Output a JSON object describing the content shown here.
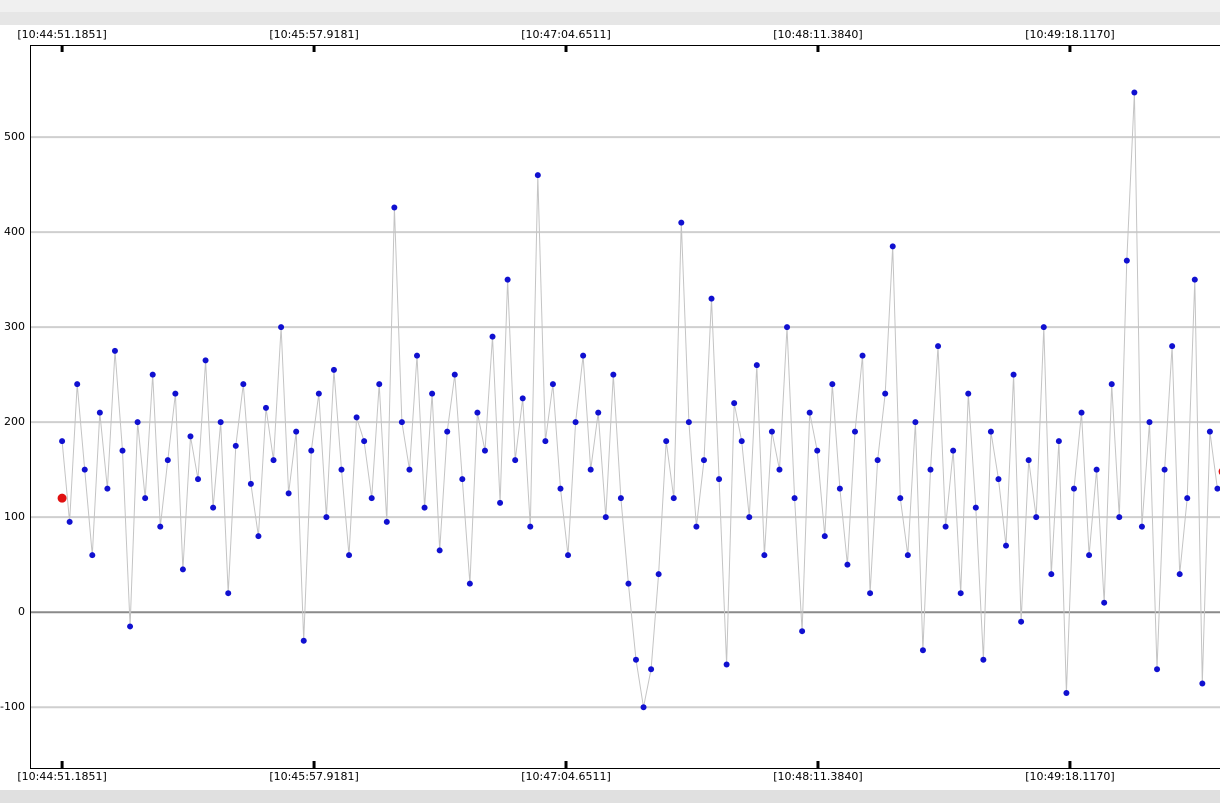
{
  "chart_data": {
    "type": "line",
    "xticks": [
      {
        "value": 0,
        "label": "[10:44:51.1851]"
      },
      {
        "value": 66.733,
        "label": "[10:45:57.9181]"
      },
      {
        "value": 133.466,
        "label": "[10:47:04.6511]"
      },
      {
        "value": 200.1989,
        "label": "[10:48:11.3840]"
      },
      {
        "value": 266.9319,
        "label": "[10:49:18.1170]"
      }
    ],
    "xlim": [
      -8.5,
      308
    ],
    "ylim": [
      -164,
      597
    ],
    "yticks": [
      -100,
      0,
      100,
      200,
      300,
      400,
      500
    ],
    "grid": true,
    "series": [
      {
        "color": "#1010d0",
        "line_color": "#c4c4c4",
        "x": [
          0,
          2,
          4,
          6,
          8,
          10,
          12,
          14,
          16,
          18,
          20,
          22,
          24,
          26,
          28,
          30,
          32,
          34,
          36,
          38,
          40,
          42,
          44,
          46,
          48,
          50,
          52,
          54,
          56,
          58,
          60,
          62,
          64,
          66,
          68,
          70,
          72,
          74,
          76,
          78,
          80,
          82,
          84,
          86,
          88,
          90,
          92,
          94,
          96,
          98,
          100,
          102,
          104,
          106,
          108,
          110,
          112,
          114,
          116,
          118,
          120,
          122,
          124,
          126,
          128,
          130,
          132,
          134,
          136,
          138,
          140,
          142,
          144,
          146,
          148,
          150,
          152,
          154,
          156,
          158,
          160,
          162,
          164,
          166,
          168,
          170,
          172,
          174,
          176,
          178,
          180,
          182,
          184,
          186,
          188,
          190,
          192,
          194,
          196,
          198,
          200,
          202,
          204,
          206,
          208,
          210,
          212,
          214,
          216,
          218,
          220,
          222,
          224,
          226,
          228,
          230,
          232,
          234,
          236,
          238,
          240,
          242,
          244,
          246,
          248,
          250,
          252,
          254,
          256,
          258,
          260,
          262,
          264,
          266,
          268,
          270,
          272,
          274,
          276,
          278,
          280,
          282,
          284,
          286,
          288,
          290,
          292,
          294,
          296,
          298,
          300,
          302,
          304,
          306
        ],
        "values": [
          180,
          95,
          240,
          150,
          60,
          210,
          130,
          275,
          170,
          -15,
          200,
          120,
          250,
          90,
          160,
          230,
          45,
          185,
          140,
          265,
          110,
          200,
          20,
          175,
          240,
          135,
          80,
          215,
          160,
          300,
          125,
          190,
          -30,
          170,
          230,
          100,
          255,
          150,
          60,
          205,
          180,
          120,
          240,
          95,
          426,
          200,
          150,
          270,
          110,
          230,
          65,
          190,
          250,
          140,
          30,
          210,
          170,
          290,
          115,
          350,
          160,
          225,
          90,
          460,
          180,
          240,
          130,
          60,
          200,
          270,
          150,
          210,
          100,
          250,
          120,
          30,
          -50,
          -100,
          -60,
          40,
          180,
          120,
          410,
          200,
          90,
          160,
          330,
          140,
          -55,
          220,
          180,
          100,
          260,
          60,
          190,
          150,
          300,
          120,
          -20,
          210,
          170,
          80,
          240,
          130,
          50,
          190,
          270,
          20,
          160,
          230,
          385,
          120,
          60,
          200,
          -40,
          150,
          280,
          90,
          170,
          20,
          230,
          110,
          -50,
          190,
          140,
          70,
          250,
          -10,
          160,
          100,
          300,
          40,
          180,
          -85,
          130,
          210,
          60,
          150,
          10,
          240,
          100,
          370,
          547,
          90,
          200,
          -60,
          150,
          280,
          40,
          120,
          350,
          -75,
          190,
          130
        ]
      },
      {
        "color": "#e01010",
        "x": [
          0,
          307.5
        ],
        "values": [
          120,
          148
        ]
      }
    ]
  }
}
